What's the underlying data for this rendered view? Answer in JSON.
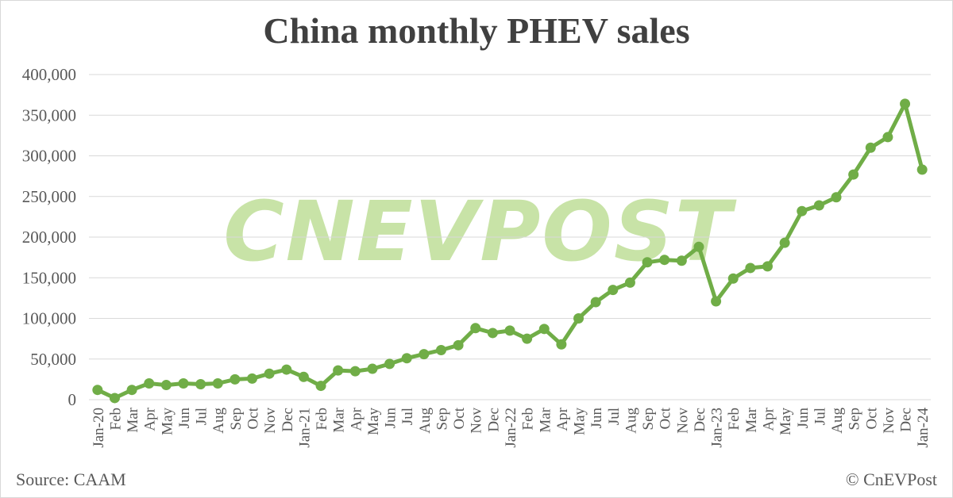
{
  "source": "Source: CAAM",
  "copyright": "© CnEVPost",
  "watermark": "CNEVPOST",
  "chart_data": {
    "type": "line",
    "title": "China monthly PHEV sales",
    "xlabel": "",
    "ylabel": "",
    "ylim": [
      0,
      400000
    ],
    "yticks": [
      0,
      50000,
      100000,
      150000,
      200000,
      250000,
      300000,
      350000,
      400000
    ],
    "ytick_labels": [
      "0",
      "50,000",
      "100,000",
      "150,000",
      "200,000",
      "250,000",
      "300,000",
      "350,000",
      "400,000"
    ],
    "grid": "horizontal",
    "legend": "none",
    "line_color": "#70ad47",
    "categories": [
      "Jan-20",
      "Feb",
      "Mar",
      "Apr",
      "May",
      "Jun",
      "Jul",
      "Aug",
      "Sep",
      "Oct",
      "Nov",
      "Dec",
      "Jan-21",
      "Feb",
      "Mar",
      "Apr",
      "May",
      "Jun",
      "Jul",
      "Aug",
      "Sep",
      "Oct",
      "Nov",
      "Dec",
      "Jan-22",
      "Feb",
      "Mar",
      "Apr",
      "May",
      "Jun",
      "Jul",
      "Aug",
      "Sep",
      "Oct",
      "Nov",
      "Dec",
      "Jan-23",
      "Feb",
      "Mar",
      "Apr",
      "May",
      "Jun",
      "Jul",
      "Aug",
      "Sep",
      "Oct",
      "Nov",
      "Dec",
      "Jan-24"
    ],
    "values": [
      12000,
      2000,
      12000,
      20000,
      18000,
      20000,
      19000,
      20000,
      25000,
      26000,
      32000,
      37000,
      28000,
      17000,
      36000,
      35000,
      38000,
      44000,
      51000,
      56000,
      61000,
      67000,
      88000,
      82000,
      85000,
      75000,
      87000,
      68000,
      100000,
      120000,
      135000,
      144000,
      169000,
      172000,
      171000,
      188000,
      121000,
      149000,
      162000,
      164000,
      193000,
      232000,
      239000,
      249000,
      277000,
      310000,
      323000,
      364000,
      283000
    ]
  }
}
